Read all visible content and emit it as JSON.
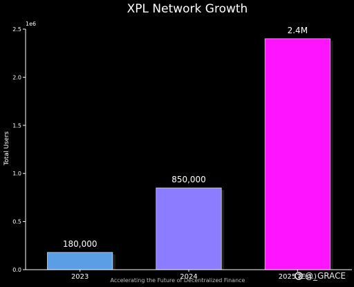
{
  "chart_data": {
    "type": "bar",
    "title": "XPL Network Growth",
    "ylabel": "Total Users",
    "xlabel": "",
    "y_multiplier_label": "1e6",
    "categories": [
      "2023",
      "2024",
      "2025 (Est.)"
    ],
    "values": [
      180000,
      850000,
      2400000
    ],
    "data_labels": [
      "180,000",
      "850,000",
      "2.4M"
    ],
    "bar_colors": [
      "#5c9ee6",
      "#8c7cff",
      "#ff14ff"
    ],
    "ylim": [
      0,
      2500000
    ],
    "yticks": [
      0,
      500000,
      1000000,
      1500000,
      2000000,
      2500000
    ],
    "ytick_labels": [
      "0.0",
      "0.5",
      "1.0",
      "1.5",
      "2.0",
      "2.5"
    ],
    "grid": false,
    "caption": "Accelerating the Future of Decentralized Finance",
    "watermark": "@_GRACE"
  },
  "colors": {
    "background": "#000000",
    "axis": "#ffffff",
    "grid": "#333333"
  }
}
